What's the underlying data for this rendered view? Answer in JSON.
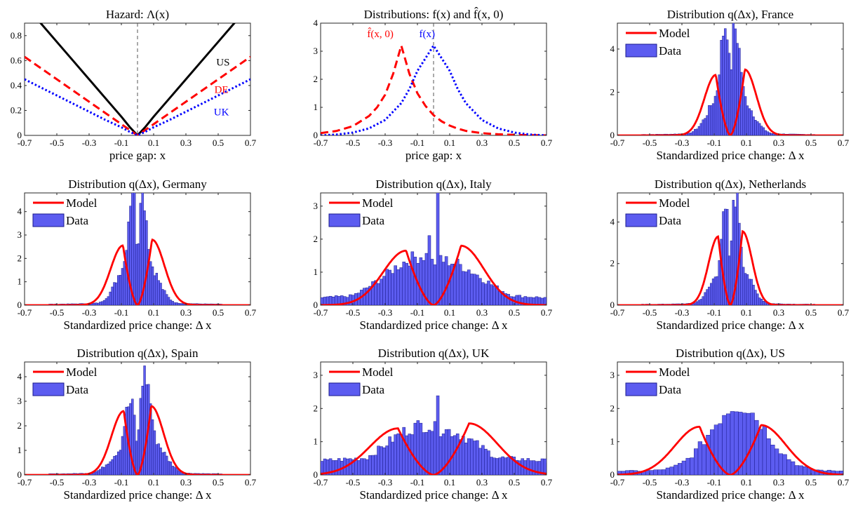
{
  "figure": {
    "description_free": true
  },
  "chart_data": [
    {
      "id": "hazard",
      "type": "line",
      "title": "Hazard:  Λ(x)",
      "xlabel": "price gap:  x",
      "ylabel": "",
      "xlim": [
        -0.7,
        0.7
      ],
      "ylim": [
        0,
        0.9
      ],
      "xticks": [
        -0.7,
        -0.5,
        -0.3,
        -0.1,
        0.1,
        0.3,
        0.5,
        0.7
      ],
      "yticks": [
        0,
        0.2,
        0.4,
        0.6,
        0.8
      ],
      "vline": 0,
      "legend": null,
      "series": [
        {
          "name": "US",
          "color": "#000000",
          "style": "solid",
          "x": [
            -0.7,
            -0.6,
            -0.5,
            -0.4,
            -0.3,
            -0.2,
            -0.1,
            -0.05,
            0,
            0.05,
            0.1,
            0.2,
            0.3,
            0.4,
            0.5,
            0.6,
            0.7
          ],
          "y": [
            1.05,
            0.9,
            0.75,
            0.6,
            0.45,
            0.3,
            0.15,
            0.07,
            0,
            0.07,
            0.15,
            0.3,
            0.45,
            0.6,
            0.75,
            0.9,
            1.05
          ]
        },
        {
          "name": "DE",
          "color": "#ff0000",
          "style": "dashed",
          "x": [
            -0.7,
            -0.6,
            -0.5,
            -0.4,
            -0.3,
            -0.2,
            -0.1,
            -0.05,
            0,
            0.05,
            0.1,
            0.2,
            0.3,
            0.4,
            0.5,
            0.6,
            0.7
          ],
          "y": [
            0.63,
            0.54,
            0.45,
            0.36,
            0.27,
            0.18,
            0.09,
            0.045,
            0,
            0.045,
            0.09,
            0.18,
            0.27,
            0.36,
            0.45,
            0.54,
            0.63
          ]
        },
        {
          "name": "UK",
          "color": "#0000ff",
          "style": "dotted",
          "x": [
            -0.7,
            -0.6,
            -0.5,
            -0.4,
            -0.3,
            -0.2,
            -0.1,
            -0.05,
            0,
            0.05,
            0.1,
            0.2,
            0.3,
            0.4,
            0.5,
            0.6,
            0.7
          ],
          "y": [
            0.45,
            0.385,
            0.32,
            0.255,
            0.19,
            0.125,
            0.065,
            0.03,
            0,
            0.03,
            0.065,
            0.125,
            0.19,
            0.255,
            0.32,
            0.385,
            0.45
          ]
        }
      ],
      "annotations": [
        {
          "text": "US",
          "x": 0.53,
          "y": 0.56,
          "color": "#000000"
        },
        {
          "text": "DE",
          "x": 0.52,
          "y": 0.34,
          "color": "#ff0000"
        },
        {
          "text": "UK",
          "x": 0.52,
          "y": 0.16,
          "color": "#0000ff"
        }
      ]
    },
    {
      "id": "distributions",
      "type": "line",
      "title": "Distributions:  f(x) and f̂(x, 0)",
      "xlabel": "price gap:  x",
      "ylabel": "",
      "xlim": [
        -0.7,
        0.7
      ],
      "ylim": [
        0,
        4
      ],
      "xticks": [
        -0.7,
        -0.5,
        -0.3,
        -0.1,
        0.1,
        0.3,
        0.5,
        0.7
      ],
      "yticks": [
        0,
        1,
        2,
        3,
        4
      ],
      "vline": 0,
      "legend": null,
      "series": [
        {
          "name": "f̂(x,0)",
          "color": "#ff0000",
          "style": "dashed",
          "x": [
            -0.7,
            -0.6,
            -0.5,
            -0.4,
            -0.35,
            -0.3,
            -0.25,
            -0.2,
            -0.15,
            -0.1,
            -0.05,
            0,
            0.05,
            0.1,
            0.15,
            0.2,
            0.3,
            0.4,
            0.5,
            0.6,
            0.7
          ],
          "y": [
            0.08,
            0.16,
            0.33,
            0.69,
            1.0,
            1.45,
            2.2,
            3.2,
            2.2,
            1.5,
            1.05,
            0.72,
            0.5,
            0.35,
            0.24,
            0.16,
            0.08,
            0.04,
            0.02,
            0.01,
            0.0
          ]
        },
        {
          "name": "f(x)",
          "color": "#0000ff",
          "style": "dotted",
          "x": [
            -0.7,
            -0.6,
            -0.5,
            -0.4,
            -0.3,
            -0.2,
            -0.15,
            -0.1,
            -0.05,
            0,
            0.05,
            0.1,
            0.15,
            0.2,
            0.3,
            0.4,
            0.5,
            0.6,
            0.7
          ],
          "y": [
            0.0,
            0.03,
            0.1,
            0.25,
            0.55,
            1.15,
            1.65,
            2.3,
            2.75,
            3.2,
            2.75,
            2.3,
            1.65,
            1.15,
            0.55,
            0.25,
            0.1,
            0.03,
            0.0
          ]
        }
      ],
      "annotations": [
        {
          "text": "f̂(x, 0)",
          "x": -0.33,
          "y": 3.5,
          "color": "#ff0000"
        },
        {
          "text": "f(x)",
          "x": -0.04,
          "y": 3.5,
          "color": "#0000ff"
        }
      ]
    },
    {
      "id": "france",
      "type": "bar",
      "title": "Distribution  q(Δx), France",
      "xlabel": "Standardized price change:  Δ x",
      "xlim": [
        -0.7,
        0.7
      ],
      "ylim": [
        0,
        5.2
      ],
      "xticks": [
        -0.7,
        -0.5,
        -0.3,
        -0.1,
        0.1,
        0.3,
        0.5,
        0.7
      ],
      "yticks": [
        0,
        2,
        4
      ],
      "legend": {
        "position": "top-left",
        "entries": [
          "Model",
          "Data"
        ]
      },
      "bars": {
        "name": "Data",
        "color": "#5c5cf0",
        "edge": "#1a1a8c",
        "shape": "bimodal",
        "range": [
          -0.55,
          0.52
        ],
        "bin": 0.0125,
        "peak_left": 5.2,
        "peak_right": 5.0,
        "peak_pos": 0.028,
        "center_dip": 2.3,
        "width": 0.09,
        "tail": 0.08
      },
      "model": {
        "name": "Model",
        "color": "#ff0000",
        "peak_pos": 0.09,
        "left_peak": 2.8,
        "right_peak": 3.05,
        "sigma": 0.065
      }
    },
    {
      "id": "germany",
      "type": "bar",
      "title": "Distribution  q(Δx), Germany",
      "xlabel": "Standardized price change:  Δ x",
      "xlim": [
        -0.7,
        0.7
      ],
      "ylim": [
        0,
        4.8
      ],
      "xticks": [
        -0.7,
        -0.5,
        -0.3,
        -0.1,
        0.1,
        0.3,
        0.5,
        0.7
      ],
      "yticks": [
        0,
        1,
        2,
        3,
        4
      ],
      "legend": {
        "position": "top-left",
        "entries": [
          "Model",
          "Data"
        ]
      },
      "bars": {
        "name": "Data",
        "color": "#5c5cf0",
        "edge": "#1a1a8c",
        "shape": "bimodal",
        "range": [
          -0.55,
          0.52
        ],
        "bin": 0.0125,
        "peak_left": 5.2,
        "peak_right": 5.2,
        "peak_pos": 0.025,
        "center_dip": 1.3,
        "width": 0.085,
        "tail": 0.08
      },
      "model": {
        "name": "Model",
        "color": "#ff0000",
        "peak_pos": 0.09,
        "left_peak": 2.55,
        "right_peak": 2.8,
        "sigma": 0.07
      }
    },
    {
      "id": "italy",
      "type": "bar",
      "title": "Distribution  q(Δx), Italy",
      "xlabel": "Standardized price change:  Δ x",
      "xlim": [
        -0.7,
        0.7
      ],
      "ylim": [
        0,
        3.4
      ],
      "xticks": [
        -0.7,
        -0.5,
        -0.3,
        -0.1,
        0.1,
        0.3,
        0.5,
        0.7
      ],
      "yticks": [
        0,
        1,
        2,
        3
      ],
      "legend": {
        "position": "top-left",
        "entries": [
          "Model",
          "Data"
        ]
      },
      "bars": {
        "name": "Data",
        "color": "#5c5cf0",
        "edge": "#1a1a8c",
        "shape": "wide",
        "range": [
          -0.7,
          0.7
        ],
        "bin": 0.0175,
        "peak_left": 2.3,
        "peak_right": 3.2,
        "peak_pos": 0.025,
        "center_dip": 1.3,
        "width": 0.2,
        "tail": 0.15
      },
      "model": {
        "name": "Model",
        "color": "#ff0000",
        "peak_pos": 0.17,
        "left_peak": 1.65,
        "right_peak": 1.8,
        "sigma": 0.13
      }
    },
    {
      "id": "netherlands",
      "type": "bar",
      "title": "Distribution  q(Δx), Netherlands",
      "xlabel": "Standardized price change:  Δ x",
      "xlim": [
        -0.7,
        0.7
      ],
      "ylim": [
        0,
        5.4
      ],
      "xticks": [
        -0.7,
        -0.5,
        -0.3,
        -0.1,
        0.1,
        0.3,
        0.5,
        0.7
      ],
      "yticks": [
        0,
        2,
        4
      ],
      "legend": {
        "position": "top-left",
        "entries": [
          "Model",
          "Data"
        ]
      },
      "bars": {
        "name": "Data",
        "color": "#5c5cf0",
        "edge": "#1a1a8c",
        "shape": "bimodal",
        "range": [
          -0.55,
          0.52
        ],
        "bin": 0.0125,
        "peak_left": 4.3,
        "peak_right": 5.4,
        "peak_pos": 0.03,
        "center_dip": 1.4,
        "width": 0.08,
        "tail": 0.06
      },
      "model": {
        "name": "Model",
        "color": "#ff0000",
        "peak_pos": 0.075,
        "left_peak": 3.3,
        "right_peak": 3.55,
        "sigma": 0.055
      }
    },
    {
      "id": "spain",
      "type": "bar",
      "title": "Distribution  q(Δx), Spain",
      "xlabel": "Standardized price change:  Δ x",
      "xlim": [
        -0.7,
        0.7
      ],
      "ylim": [
        0,
        4.6
      ],
      "xticks": [
        -0.7,
        -0.5,
        -0.3,
        -0.1,
        0.1,
        0.3,
        0.5,
        0.7
      ],
      "yticks": [
        0,
        1,
        2,
        3,
        4
      ],
      "legend": {
        "position": "top-left",
        "entries": [
          "Model",
          "Data"
        ]
      },
      "bars": {
        "name": "Data",
        "color": "#5c5cf0",
        "edge": "#1a1a8c",
        "shape": "bimodal",
        "range": [
          -0.55,
          0.52
        ],
        "bin": 0.0125,
        "peak_left": 2.9,
        "peak_right": 4.1,
        "peak_pos": 0.045,
        "center_dip": 1.0,
        "width": 0.1,
        "tail": 0.08
      },
      "model": {
        "name": "Model",
        "color": "#ff0000",
        "peak_pos": 0.085,
        "left_peak": 2.6,
        "right_peak": 2.8,
        "sigma": 0.07
      }
    },
    {
      "id": "uk",
      "type": "bar",
      "title": "Distribution  q(Δx), UK",
      "xlabel": "Standardized price change:  Δ x",
      "xlim": [
        -0.7,
        0.7
      ],
      "ylim": [
        0,
        3.4
      ],
      "xticks": [
        -0.7,
        -0.5,
        -0.3,
        -0.1,
        0.1,
        0.3,
        0.5,
        0.7
      ],
      "yticks": [
        0,
        1,
        2,
        3
      ],
      "legend": {
        "position": "top-left",
        "entries": [
          "Model",
          "Data"
        ]
      },
      "bars": {
        "name": "Data",
        "color": "#5c5cf0",
        "edge": "#1a1a8c",
        "shape": "wide",
        "range": [
          -0.7,
          0.7
        ],
        "bin": 0.0175,
        "peak_left": 1.1,
        "peak_right": 2.8,
        "peak_pos": 0.025,
        "center_dip": 1.4,
        "width": 0.25,
        "tail": 0.35
      },
      "model": {
        "name": "Model",
        "color": "#ff0000",
        "peak_pos": 0.22,
        "left_peak": 1.4,
        "right_peak": 1.55,
        "sigma": 0.16
      }
    },
    {
      "id": "us",
      "type": "bar",
      "title": "Distribution  q(Δx), US",
      "xlabel": "Standardized price change:  Δ x",
      "xlim": [
        -0.7,
        0.7
      ],
      "ylim": [
        0,
        3.4
      ],
      "xticks": [
        -0.7,
        -0.5,
        -0.3,
        -0.1,
        0.1,
        0.3,
        0.5,
        0.7
      ],
      "yticks": [
        0,
        1,
        2,
        3
      ],
      "legend": {
        "position": "top-left",
        "entries": [
          "Model",
          "Data"
        ]
      },
      "bars": {
        "name": "Data",
        "color": "#5c5cf0",
        "edge": "#1a1a8c",
        "shape": "hump",
        "range": [
          -0.7,
          0.7
        ],
        "bin": 0.025,
        "peak_left": 2.0,
        "peak_right": 2.0,
        "peak_pos": 0.08,
        "center_dip": 1.7,
        "width": 0.25,
        "tail": 0.1
      },
      "model": {
        "name": "Model",
        "color": "#ff0000",
        "peak_pos": 0.19,
        "left_peak": 1.45,
        "right_peak": 1.5,
        "sigma": 0.14
      }
    }
  ]
}
